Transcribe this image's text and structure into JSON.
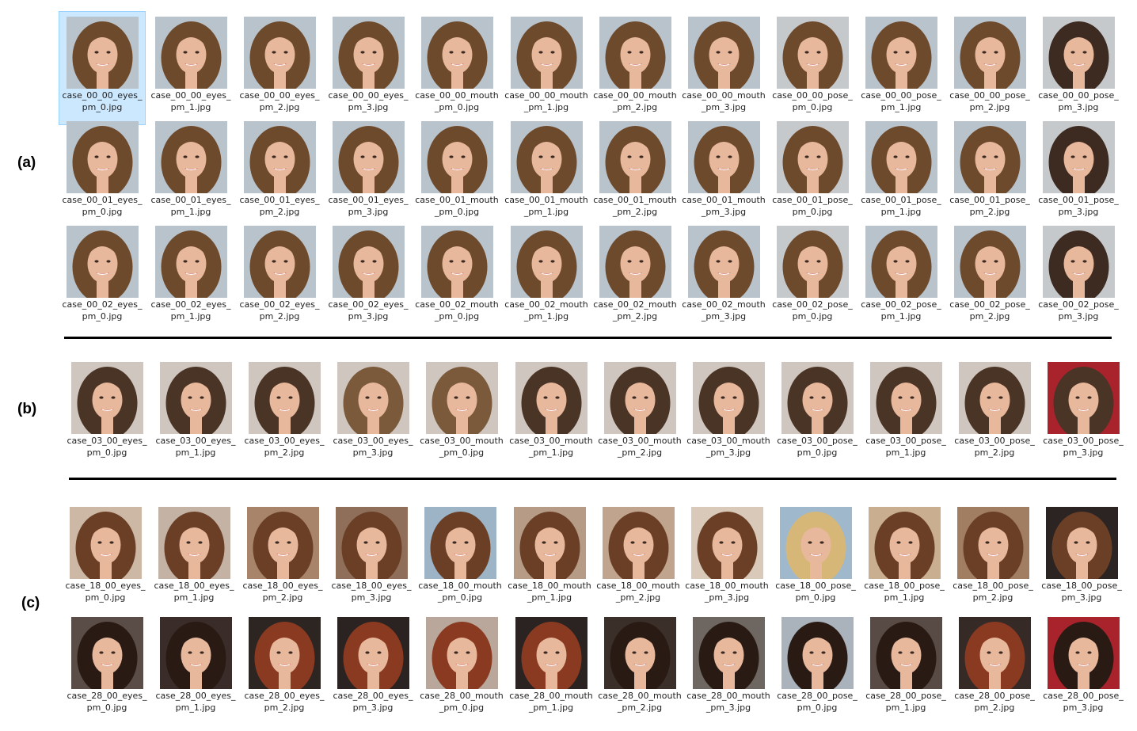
{
  "sections": [
    {
      "label": "(a)",
      "rows": [
        {
          "case": "00_00",
          "selected_index": 0,
          "files": [
            "case_00_00_eyes_pm_0.jpg",
            "case_00_00_eyes_pm_1.jpg",
            "case_00_00_eyes_pm_2.jpg",
            "case_00_00_eyes_pm_3.jpg",
            "case_00_00_mouth_pm_0.jpg",
            "case_00_00_mouth_pm_1.jpg",
            "case_00_00_mouth_pm_2.jpg",
            "case_00_00_mouth_pm_3.jpg",
            "case_00_00_pose_pm_0.jpg",
            "case_00_00_pose_pm_1.jpg",
            "case_00_00_pose_pm_2.jpg",
            "case_00_00_pose_pm_3.jpg"
          ]
        },
        {
          "case": "00_01",
          "files": [
            "case_00_01_eyes_pm_0.jpg",
            "case_00_01_eyes_pm_1.jpg",
            "case_00_01_eyes_pm_2.jpg",
            "case_00_01_eyes_pm_3.jpg",
            "case_00_01_mouth_pm_0.jpg",
            "case_00_01_mouth_pm_1.jpg",
            "case_00_01_mouth_pm_2.jpg",
            "case_00_01_mouth_pm_3.jpg",
            "case_00_01_pose_pm_0.jpg",
            "case_00_01_pose_pm_1.jpg",
            "case_00_01_pose_pm_2.jpg",
            "case_00_01_pose_pm_3.jpg"
          ]
        },
        {
          "case": "00_02",
          "files": [
            "case_00_02_eyes_pm_0.jpg",
            "case_00_02_eyes_pm_1.jpg",
            "case_00_02_eyes_pm_2.jpg",
            "case_00_02_eyes_pm_3.jpg",
            "case_00_02_mouth_pm_0.jpg",
            "case_00_02_mouth_pm_1.jpg",
            "case_00_02_mouth_pm_2.jpg",
            "case_00_02_mouth_pm_3.jpg",
            "case_00_02_pose_pm_0.jpg",
            "case_00_02_pose_pm_1.jpg",
            "case_00_02_pose_pm_2.jpg",
            "case_00_02_pose_pm_3.jpg"
          ]
        }
      ]
    },
    {
      "label": "(b)",
      "rows": [
        {
          "case": "03_00",
          "files": [
            "case_03_00_eyes_pm_0.jpg",
            "case_03_00_eyes_pm_1.jpg",
            "case_03_00_eyes_pm_2.jpg",
            "case_03_00_eyes_pm_3.jpg",
            "case_03_00_mouth_pm_0.jpg",
            "case_03_00_mouth_pm_1.jpg",
            "case_03_00_mouth_pm_2.jpg",
            "case_03_00_mouth_pm_3.jpg",
            "case_03_00_pose_pm_0.jpg",
            "case_03_00_pose_pm_1.jpg",
            "case_03_00_pose_pm_2.jpg",
            "case_03_00_pose_pm_3.jpg"
          ]
        }
      ]
    },
    {
      "label": "(c)",
      "rows": [
        {
          "case": "18_00",
          "files": [
            "case_18_00_eyes_pm_0.jpg",
            "case_18_00_eyes_pm_1.jpg",
            "case_18_00_eyes_pm_2.jpg",
            "case_18_00_eyes_pm_3.jpg",
            "case_18_00_mouth_pm_0.jpg",
            "case_18_00_mouth_pm_1.jpg",
            "case_18_00_mouth_pm_2.jpg",
            "case_18_00_mouth_pm_3.jpg",
            "case_18_00_pose_pm_0.jpg",
            "case_18_00_pose_pm_1.jpg",
            "case_18_00_pose_pm_2.jpg",
            "case_18_00_pose_pm_3.jpg"
          ]
        },
        {
          "case": "28_00",
          "files": [
            "case_28_00_eyes_pm_0.jpg",
            "case_28_00_eyes_pm_1.jpg",
            "case_28_00_eyes_pm_2.jpg",
            "case_28_00_eyes_pm_3.jpg",
            "case_28_00_mouth_pm_0.jpg",
            "case_28_00_mouth_pm_1.jpg",
            "case_28_00_mouth_pm_2.jpg",
            "case_28_00_mouth_pm_3.jpg",
            "case_28_00_pose_pm_0.jpg",
            "case_28_00_pose_pm_1.jpg",
            "case_28_00_pose_pm_2.jpg",
            "case_28_00_pose_pm_3.jpg"
          ]
        }
      ]
    }
  ],
  "palette": {
    "selection_bg": "#cce8ff",
    "selection_border": "#99d1ff",
    "caption_color": "#222222",
    "skin": "#e8b89c",
    "lips": "#c9535b",
    "bg_light": "#b9c3cc",
    "bg_warm": "#d9c1a8",
    "bg_red": "#a8232b",
    "bg_dark": "#2b2422"
  }
}
